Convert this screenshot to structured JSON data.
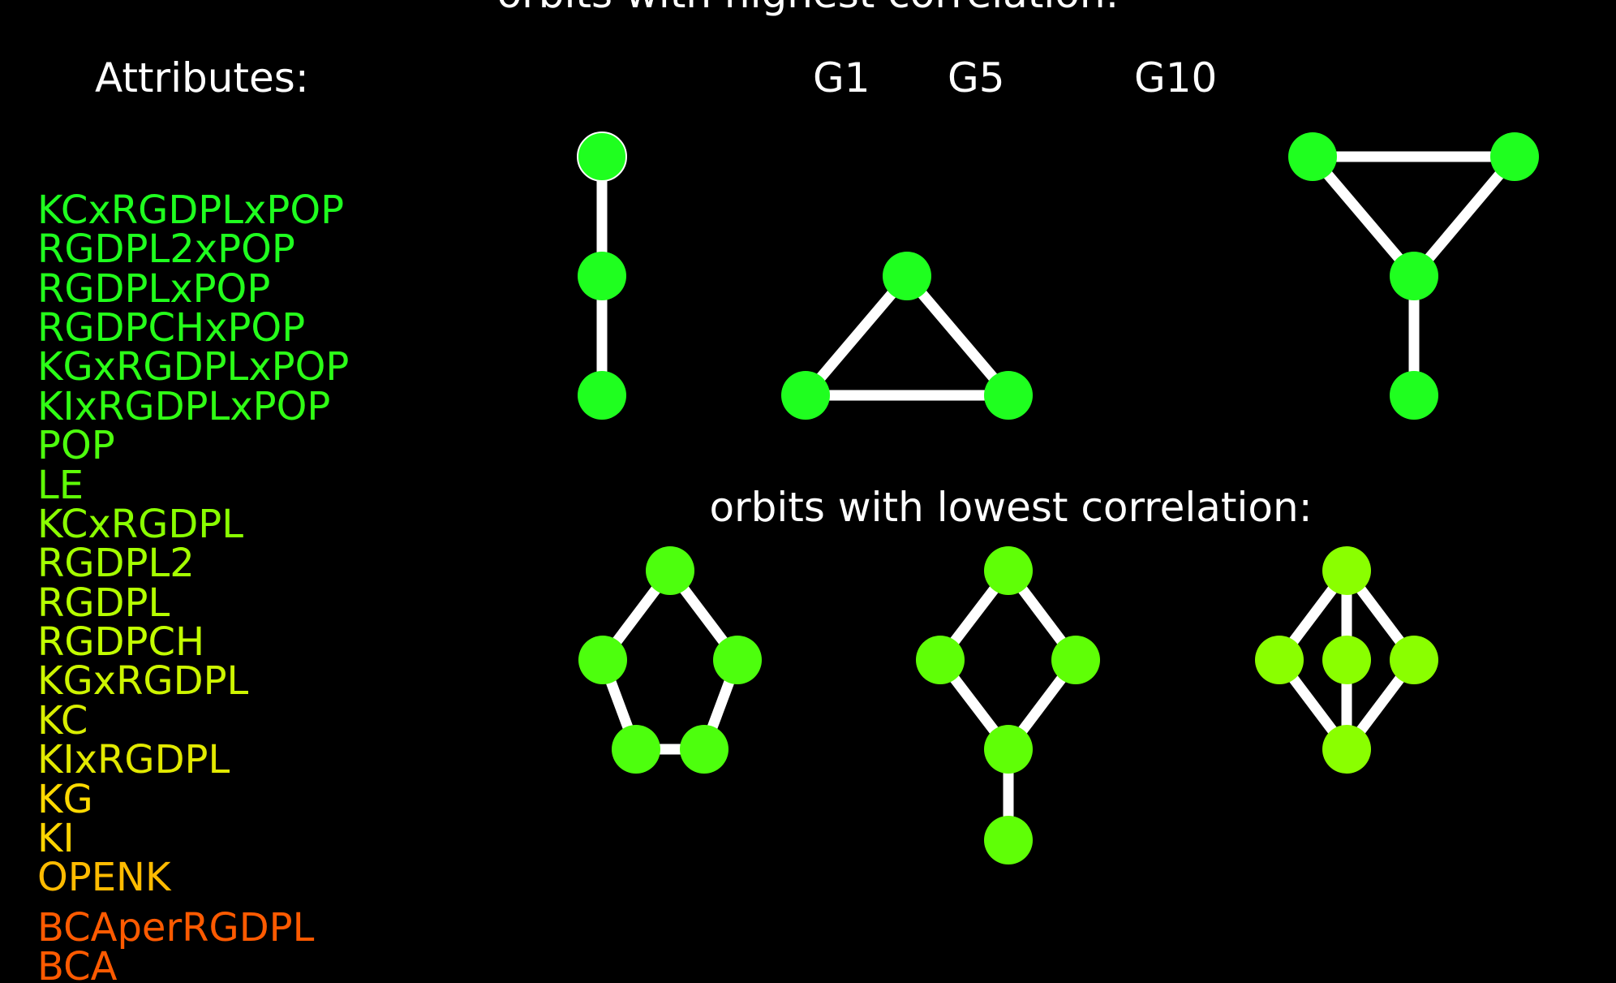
{
  "title": "orbits with highest correlation:",
  "attributes_heading": "Attributes:",
  "lowest_heading": "orbits with lowest correlation:",
  "graph_labels": [
    "G1",
    "G5",
    "G10"
  ],
  "colors": {
    "background": "#000000",
    "text": "#ffffff",
    "edge": "#ffffff"
  },
  "attributes": [
    {
      "label": "KCxRGDPLxPOP",
      "color": "#1fff1f"
    },
    {
      "label": "RGDPL2xPOP",
      "color": "#1fff1f"
    },
    {
      "label": "RGDPLxPOP",
      "color": "#22ff1c"
    },
    {
      "label": "RGDPCHxPOP",
      "color": "#25ff1a"
    },
    {
      "label": "KGxRGDPLxPOP",
      "color": "#2bff17"
    },
    {
      "label": "KIxRGDPLxPOP",
      "color": "#30ff14"
    },
    {
      "label": "POP",
      "color": "#4dff0d"
    },
    {
      "label": "LE",
      "color": "#5fff06"
    },
    {
      "label": "KCxRGDPL",
      "color": "#8aff00"
    },
    {
      "label": "RGDPL2",
      "color": "#a4ff00"
    },
    {
      "label": "RGDPL",
      "color": "#b5ff00"
    },
    {
      "label": "RGDPCH",
      "color": "#c2ff00"
    },
    {
      "label": "KGxRGDPL",
      "color": "#cdf500"
    },
    {
      "label": "KC",
      "color": "#d8ee00"
    },
    {
      "label": "KIxRGDPL",
      "color": "#e2e900"
    },
    {
      "label": "KG",
      "color": "#ffd900"
    },
    {
      "label": "KI",
      "color": "#ffd400"
    },
    {
      "label": "OPENK",
      "color": "#ffbb00"
    },
    {
      "label": "BCAperRGDPL",
      "color": "#ff5a00"
    },
    {
      "label": "BCA",
      "color": "#ff5a00"
    }
  ],
  "graphs_top": [
    {
      "name": "path-3",
      "node_color": "#1fff1f"
    },
    {
      "name": "triangle",
      "node_color": "#1fff1f"
    },
    {
      "name": "paw",
      "node_color": "#1fff1f"
    }
  ],
  "graphs_bottom": [
    {
      "name": "cycle-5",
      "node_color": "#4dff0d"
    },
    {
      "name": "kite",
      "node_color": "#5fff06"
    },
    {
      "name": "theta",
      "node_color": "#8aff00"
    }
  ]
}
